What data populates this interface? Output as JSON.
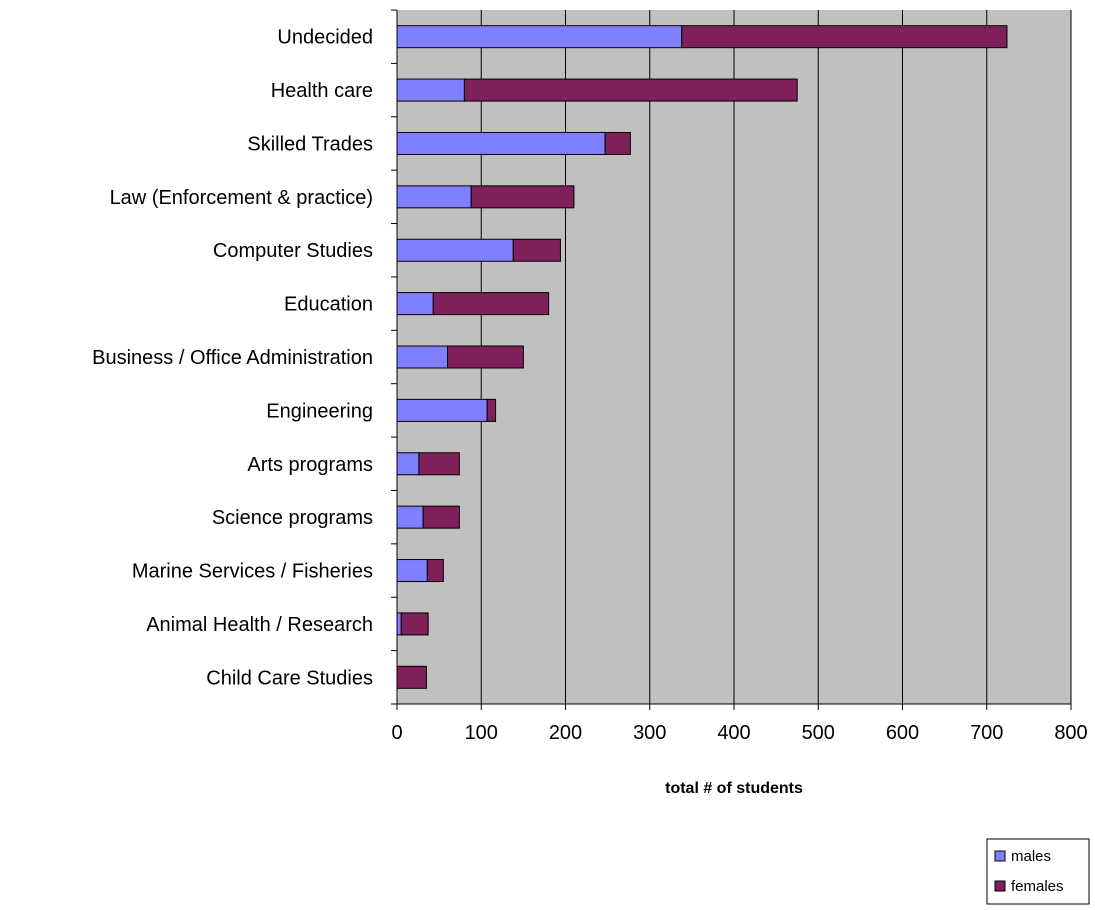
{
  "chart_data": {
    "type": "bar",
    "orientation": "horizontal",
    "stacked": true,
    "categories": [
      "Undecided",
      "Health care",
      "Skilled Trades",
      "Law (Enforcement & practice)",
      "Computer Studies",
      "Education",
      "Business / Office Administration",
      "Engineering",
      "Arts programs",
      "Science programs",
      "Marine Services / Fisheries",
      "Animal Health / Research",
      "Child Care Studies"
    ],
    "series": [
      {
        "name": "males",
        "color": "#8080ff",
        "values": [
          338,
          80,
          247,
          88,
          138,
          43,
          60,
          107,
          26,
          31,
          36,
          5,
          0
        ]
      },
      {
        "name": "females",
        "color": "#80205a",
        "values": [
          386,
          395,
          30,
          122,
          56,
          137,
          90,
          10,
          48,
          43,
          19,
          32,
          35
        ]
      }
    ],
    "xlabel": "total # of students",
    "ylabel": "",
    "title": "",
    "xlim": [
      0,
      800
    ],
    "xticks": [
      "0",
      "100",
      "200",
      "300",
      "400",
      "500",
      "600",
      "700",
      "800"
    ],
    "grid": "vertical",
    "plot_background": "#c0c0c0",
    "legend_position": "bottom-right"
  }
}
